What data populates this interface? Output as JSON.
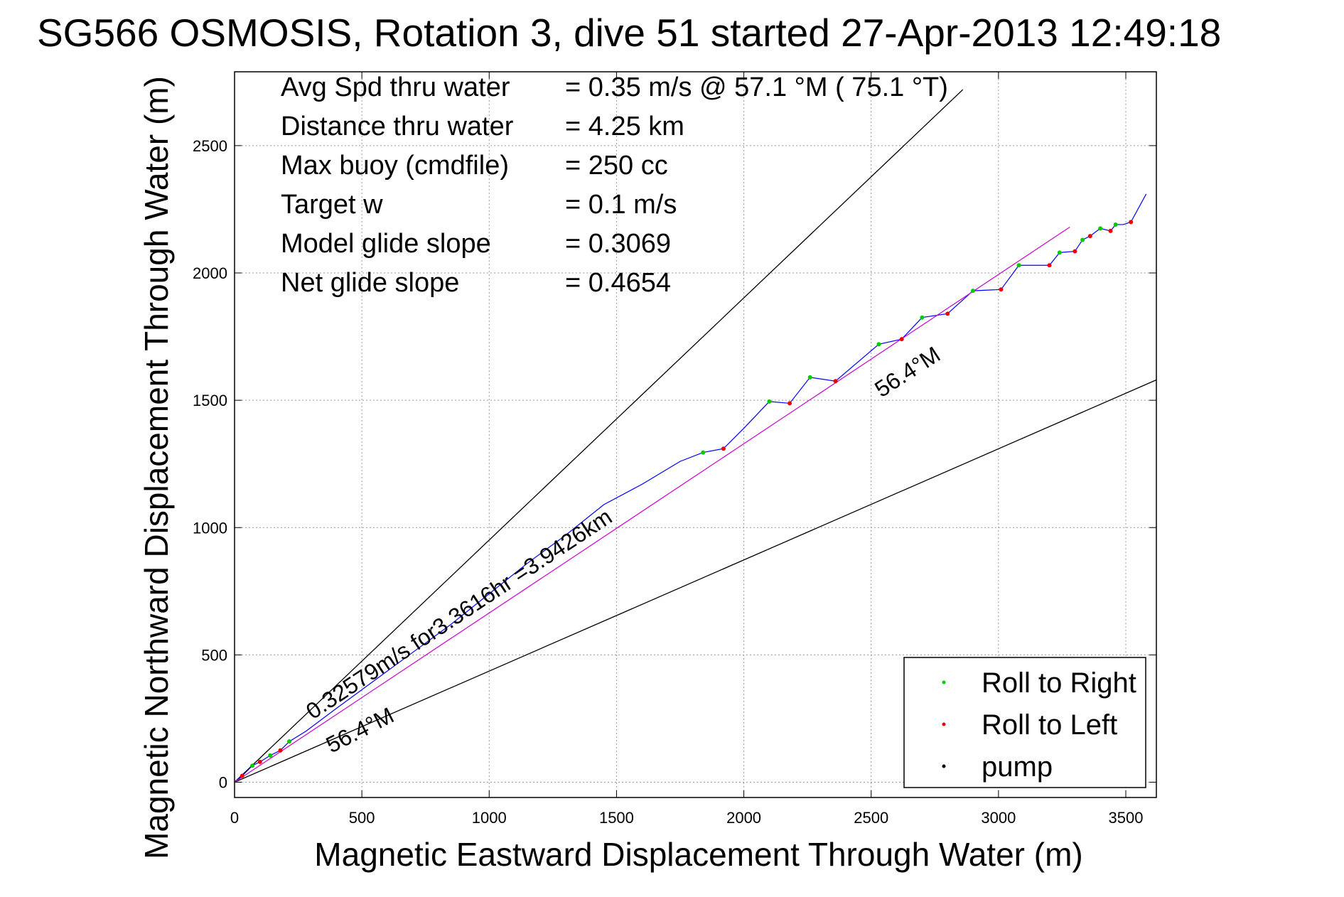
{
  "chart_data": {
    "type": "line",
    "title": "SG566 OSMOSIS, Rotation 3, dive 51 started 27-Apr-2013 12:49:18",
    "xlabel": "Magnetic Eastward Displacement Through Water (m)",
    "ylabel": "Magnetic Northward Displacement Through Water (m)",
    "xlim": [
      0,
      3620
    ],
    "ylim": [
      -60,
      2790
    ],
    "x_ticks": [
      0,
      500,
      1000,
      1500,
      2000,
      2500,
      3000,
      3500
    ],
    "y_ticks": [
      0,
      500,
      1000,
      1500,
      2000,
      2500
    ],
    "grid": true,
    "legend_position": "bottom-right",
    "stats": [
      {
        "label": "Avg Spd thru water",
        "value": "=  0.35 m/s @  57.1 °M ( 75.1 °T)"
      },
      {
        "label": "Distance thru water",
        "value": "=  4.25 km"
      },
      {
        "label": "Max buoy (cmdfile)",
        "value": "= 250 cc"
      },
      {
        "label": "Target w",
        "value": "= 0.1 m/s"
      },
      {
        "label": "Model glide slope",
        "value": "= 0.3069"
      },
      {
        "label": "Net glide slope",
        "value": "= 0.4654"
      }
    ],
    "annotations": {
      "upper_heading": "56.4°M",
      "lower_heading": "56.4°M",
      "speed_note": "0.32579m/s for3.3616hr =3.9426km"
    },
    "legend": [
      {
        "label": "Roll to Right",
        "color": "#00cc00"
      },
      {
        "label": "Roll to Left",
        "color": "#ee0000"
      },
      {
        "label": "pump",
        "color": "#000000"
      }
    ],
    "series": [
      {
        "color": "#0000ff",
        "x": [
          0,
          30,
          70,
          100,
          140,
          180,
          215,
          280,
          400,
          550,
          700,
          850,
          1000,
          1150,
          1300,
          1450,
          1600,
          1750,
          1840,
          1920,
          2000,
          2100,
          2180,
          2260,
          2360,
          2530,
          2620,
          2700,
          2800,
          2900,
          3010,
          3080,
          3200,
          3240,
          3300,
          3330,
          3360,
          3400,
          3440,
          3460,
          3490,
          3520,
          3580
        ],
        "y": [
          0,
          25,
          65,
          80,
          105,
          125,
          160,
          200,
          290,
          400,
          510,
          620,
          740,
          860,
          970,
          1090,
          1170,
          1260,
          1295,
          1310,
          1390,
          1495,
          1488,
          1590,
          1575,
          1720,
          1740,
          1825,
          1840,
          1930,
          1935,
          2030,
          2030,
          2080,
          2085,
          2130,
          2145,
          2175,
          2165,
          2190,
          2190,
          2200,
          2310
        ]
      },
      {
        "color": "#cc00cc",
        "x": [
          0,
          3280
        ],
        "y": [
          0,
          2180
        ]
      }
    ],
    "reference_lines": [
      {
        "color": "#000000",
        "x": [
          0,
          2860
        ],
        "y": [
          0,
          2720
        ]
      },
      {
        "color": "#000000",
        "x": [
          0,
          3620
        ],
        "y": [
          0,
          1580
        ]
      }
    ],
    "roll_right_points": {
      "x": [
        70,
        140,
        215,
        1840,
        2100,
        2260,
        2530,
        2700,
        2900,
        3080,
        3240,
        3330,
        3400,
        3460
      ],
      "y": [
        65,
        105,
        160,
        1295,
        1495,
        1590,
        1720,
        1825,
        1930,
        2030,
        2080,
        2130,
        2175,
        2190
      ]
    },
    "roll_left_points": {
      "x": [
        30,
        100,
        180,
        1920,
        2180,
        2360,
        2620,
        2800,
        3010,
        3200,
        3300,
        3360,
        3440,
        3520
      ],
      "y": [
        25,
        80,
        125,
        1310,
        1488,
        1575,
        1740,
        1840,
        1935,
        2030,
        2085,
        2145,
        2165,
        2200
      ]
    }
  }
}
